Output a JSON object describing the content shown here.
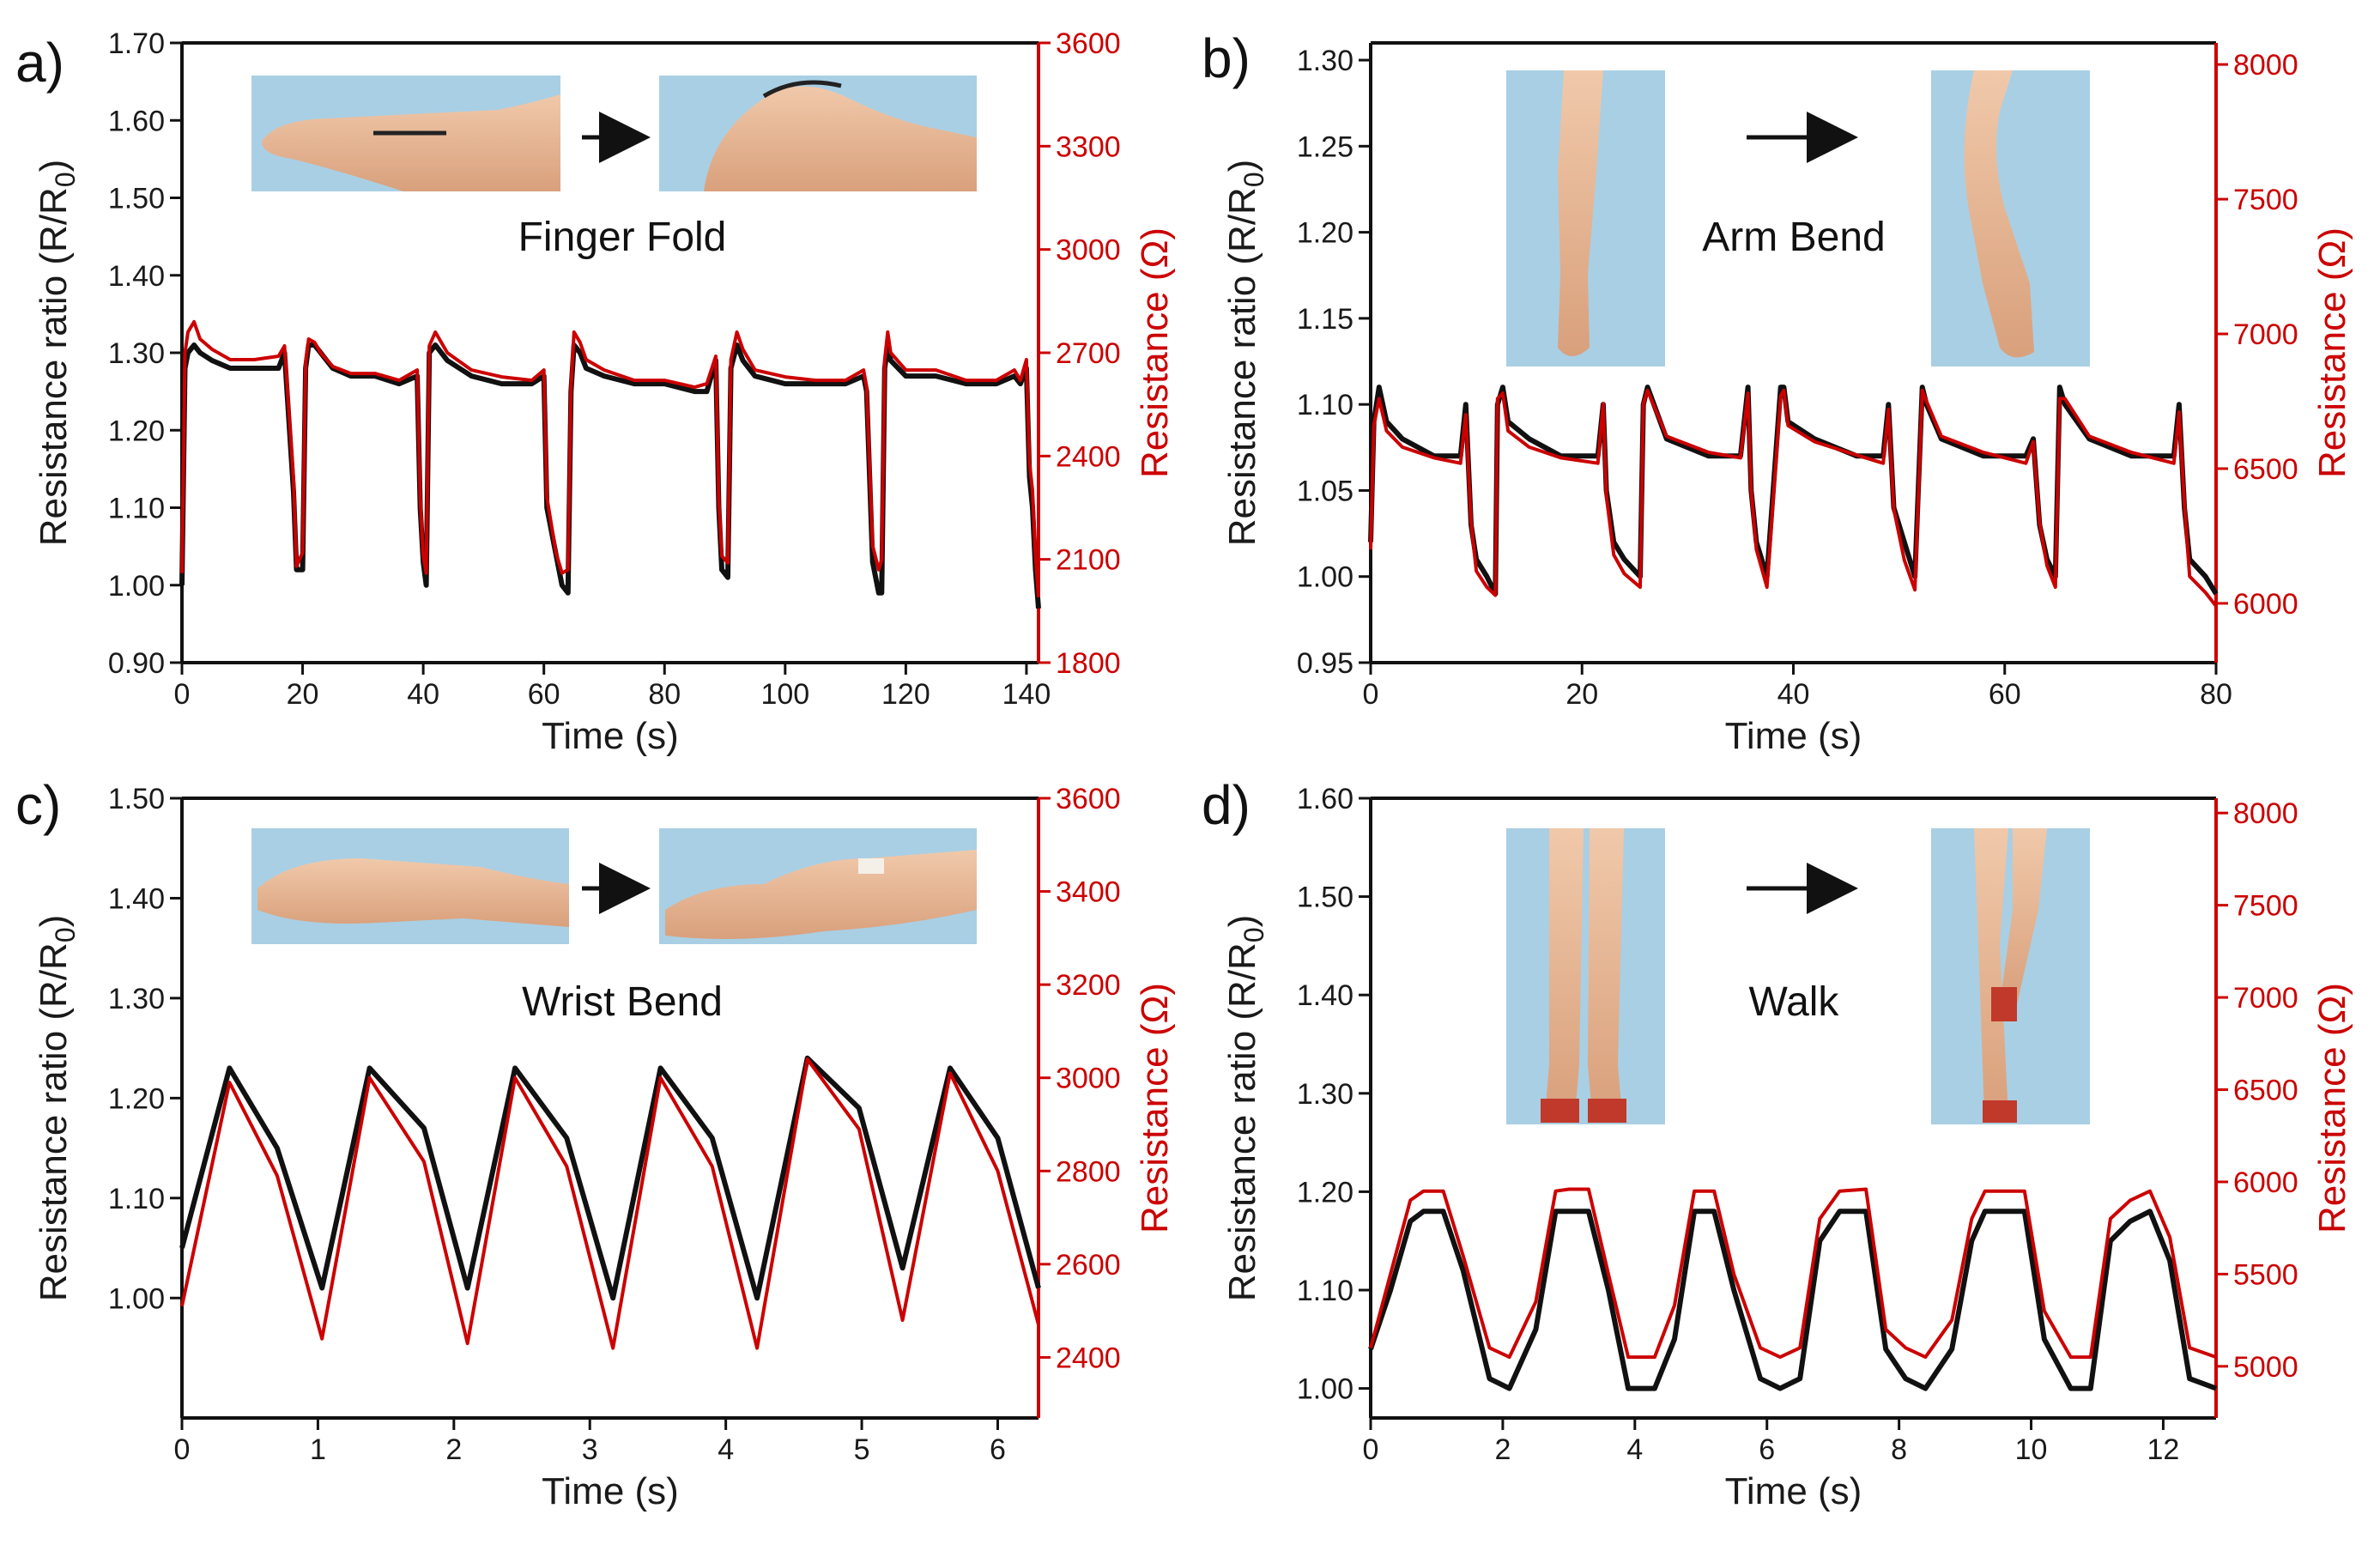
{
  "colors": {
    "ratio_series": "#111111",
    "resistance_series": "#cc0000",
    "photo_bg": "#a7cde3",
    "skin": "#e8b998"
  },
  "chart_data": [
    {
      "type": "line",
      "panel_label": "a)",
      "activity": "Finger Fold",
      "xlabel": "Time (s)",
      "ylabel_left": "Resistance ratio (R/R0)",
      "ylabel_right": "Resistance (Ω)",
      "xlim": [
        0,
        142
      ],
      "ylim_left": [
        0.9,
        1.7
      ],
      "ylim_right": [
        1800,
        3600
      ],
      "xticks": [
        "0",
        "20",
        "40",
        "60",
        "80",
        "100",
        "120",
        "140"
      ],
      "yticks_left": [
        "0.90",
        "1.00",
        "1.10",
        "1.20",
        "1.30",
        "1.40",
        "1.50",
        "1.60",
        "1.70"
      ],
      "yticks_right": [
        "1800",
        "2100",
        "2400",
        "2700",
        "3000",
        "3300",
        "3600"
      ],
      "series": [
        {
          "axis": "left",
          "x": [
            0,
            0.5,
            1,
            2,
            3,
            5,
            8,
            12,
            16,
            17,
            18.5,
            19,
            20,
            20.5,
            21,
            22,
            23,
            25,
            28,
            32,
            36,
            39,
            39.5,
            40,
            40.5,
            41,
            42,
            44,
            48,
            53,
            58,
            60,
            60.5,
            62,
            63,
            64,
            64.5,
            65,
            66,
            67,
            70,
            75,
            80,
            85,
            87,
            88.5,
            89,
            89.5,
            90.5,
            91,
            92,
            93,
            95,
            100,
            105,
            110,
            113,
            113.5,
            114.5,
            115.5,
            116,
            116.5,
            117,
            117.5,
            120,
            125,
            130,
            135,
            138,
            139,
            140,
            140.5,
            141,
            141.5,
            142
          ],
          "values": [
            1.0,
            1.28,
            1.3,
            1.31,
            1.3,
            1.29,
            1.28,
            1.28,
            1.28,
            1.3,
            1.12,
            1.02,
            1.02,
            1.28,
            1.31,
            1.31,
            1.3,
            1.28,
            1.27,
            1.27,
            1.26,
            1.27,
            1.1,
            1.03,
            1.0,
            1.3,
            1.31,
            1.29,
            1.27,
            1.26,
            1.26,
            1.27,
            1.1,
            1.04,
            1.0,
            0.99,
            1.25,
            1.31,
            1.3,
            1.28,
            1.27,
            1.26,
            1.26,
            1.25,
            1.25,
            1.29,
            1.1,
            1.02,
            1.01,
            1.28,
            1.31,
            1.29,
            1.27,
            1.26,
            1.26,
            1.26,
            1.27,
            1.25,
            1.03,
            0.99,
            0.99,
            1.28,
            1.31,
            1.29,
            1.27,
            1.27,
            1.26,
            1.26,
            1.27,
            1.26,
            1.28,
            1.14,
            1.1,
            1.02,
            0.97
          ]
        },
        {
          "axis": "right",
          "x": [
            0,
            0.5,
            1,
            2,
            3,
            5,
            8,
            12,
            16,
            17,
            18.5,
            19,
            20,
            20.5,
            21,
            22,
            23,
            25,
            28,
            32,
            36,
            39,
            39.5,
            40,
            40.5,
            41,
            42,
            44,
            48,
            53,
            58,
            60,
            60.5,
            62,
            63,
            64,
            64.5,
            65,
            66,
            67,
            70,
            75,
            80,
            85,
            87,
            88.5,
            89,
            89.5,
            90.5,
            91,
            92,
            93,
            95,
            100,
            105,
            110,
            113,
            113.5,
            114.5,
            115.5,
            116,
            116.5,
            117,
            117.5,
            120,
            125,
            130,
            135,
            138,
            139,
            140,
            140.5,
            141,
            141.5,
            142
          ],
          "values": [
            2060,
            2700,
            2760,
            2790,
            2740,
            2710,
            2680,
            2680,
            2690,
            2720,
            2330,
            2080,
            2120,
            2670,
            2740,
            2730,
            2700,
            2660,
            2640,
            2640,
            2620,
            2650,
            2280,
            2110,
            2060,
            2720,
            2760,
            2700,
            2650,
            2630,
            2620,
            2650,
            2280,
            2120,
            2060,
            2070,
            2600,
            2760,
            2730,
            2680,
            2650,
            2620,
            2620,
            2600,
            2610,
            2690,
            2270,
            2110,
            2090,
            2680,
            2760,
            2710,
            2650,
            2630,
            2620,
            2620,
            2650,
            2600,
            2140,
            2070,
            2100,
            2680,
            2760,
            2700,
            2650,
            2650,
            2620,
            2620,
            2650,
            2620,
            2680,
            2380,
            2300,
            2110,
            1990
          ]
        }
      ]
    },
    {
      "type": "line",
      "panel_label": "b)",
      "activity": "Arm Bend",
      "xlabel": "Time (s)",
      "ylabel_left": "Resistance ratio (R/R0)",
      "ylabel_right": "Resistance (Ω)",
      "xlim": [
        0,
        80
      ],
      "ylim_left": [
        0.95,
        1.31
      ],
      "ylim_right": [
        5780,
        8080
      ],
      "xticks": [
        "0",
        "20",
        "40",
        "60",
        "80"
      ],
      "yticks_left": [
        "0.95",
        "1.00",
        "1.05",
        "1.10",
        "1.15",
        "1.20",
        "1.25",
        "1.30"
      ],
      "yticks_right": [
        "6000",
        "6500",
        "7000",
        "7500",
        "8000"
      ],
      "series": [
        {
          "axis": "left",
          "x": [
            0,
            0.3,
            0.8,
            1.5,
            3,
            6,
            8.5,
            9,
            9.5,
            10,
            11,
            11.8,
            12,
            12.5,
            13,
            15,
            18,
            21.5,
            22,
            22.3,
            23,
            24,
            25.5,
            25.8,
            26.2,
            28,
            32,
            35,
            35.7,
            36,
            36.5,
            37.5,
            38.8,
            39.1,
            39.5,
            42,
            46,
            48.5,
            49,
            49.5,
            50.5,
            51.5,
            52.2,
            52.6,
            54,
            58,
            62,
            62.7,
            63.3,
            64,
            64.8,
            65.2,
            65.7,
            68,
            72,
            76,
            76.5,
            77,
            77.5,
            79,
            80
          ],
          "values": [
            1.02,
            1.09,
            1.11,
            1.09,
            1.08,
            1.07,
            1.07,
            1.1,
            1.03,
            1.01,
            1.0,
            0.99,
            1.1,
            1.11,
            1.09,
            1.08,
            1.07,
            1.07,
            1.1,
            1.05,
            1.02,
            1.01,
            1.0,
            1.1,
            1.11,
            1.08,
            1.07,
            1.07,
            1.11,
            1.05,
            1.02,
            1.0,
            1.11,
            1.11,
            1.09,
            1.08,
            1.07,
            1.07,
            1.1,
            1.04,
            1.02,
            1.0,
            1.11,
            1.1,
            1.08,
            1.07,
            1.07,
            1.08,
            1.03,
            1.01,
            1.0,
            1.11,
            1.1,
            1.08,
            1.07,
            1.07,
            1.1,
            1.04,
            1.01,
            1.0,
            0.99
          ]
        },
        {
          "axis": "right",
          "x": [
            0,
            0.3,
            0.8,
            1.5,
            3,
            6,
            8.5,
            9,
            9.5,
            10,
            11,
            11.8,
            12,
            12.5,
            13,
            15,
            18,
            21.5,
            22,
            22.3,
            23,
            24,
            25.5,
            25.8,
            26.2,
            28,
            32,
            35,
            35.7,
            36,
            36.5,
            37.5,
            38.8,
            39.1,
            39.5,
            42,
            46,
            48.5,
            49,
            49.5,
            50.5,
            51.5,
            52.2,
            52.6,
            54,
            58,
            62,
            62.7,
            63.3,
            64,
            64.8,
            65.2,
            65.7,
            68,
            72,
            76,
            76.5,
            77,
            77.5,
            79,
            80
          ],
          "values": [
            6200,
            6660,
            6760,
            6640,
            6580,
            6540,
            6520,
            6700,
            6300,
            6120,
            6060,
            6030,
            6760,
            6780,
            6640,
            6580,
            6540,
            6520,
            6740,
            6400,
            6180,
            6110,
            6060,
            6740,
            6790,
            6620,
            6560,
            6540,
            6780,
            6420,
            6200,
            6060,
            6770,
            6790,
            6660,
            6600,
            6550,
            6520,
            6720,
            6350,
            6160,
            6050,
            6790,
            6750,
            6620,
            6560,
            6520,
            6600,
            6300,
            6140,
            6060,
            6760,
            6760,
            6620,
            6560,
            6520,
            6710,
            6370,
            6100,
            6040,
            5990
          ]
        }
      ]
    },
    {
      "type": "line",
      "panel_label": "c)",
      "activity": "Wrist Bend",
      "xlabel": "Time (s)",
      "ylabel_left": "Resistance ratio (R/R0)",
      "ylabel_right": "Resistance (Ω)",
      "xlim": [
        0,
        6.3
      ],
      "ylim_left": [
        0.88,
        1.5
      ],
      "ylim_right": [
        2270,
        3600
      ],
      "xticks": [
        "0",
        "1",
        "2",
        "3",
        "4",
        "5",
        "6"
      ],
      "yticks_left": [
        "1.00",
        "1.10",
        "1.20",
        "1.30",
        "1.40",
        "1.50"
      ],
      "yticks_right": [
        "2400",
        "2600",
        "2800",
        "3000",
        "3200",
        "3400",
        "3600"
      ],
      "series": [
        {
          "axis": "left",
          "x": [
            0,
            0.35,
            0.7,
            1.03,
            1.38,
            1.78,
            2.1,
            2.45,
            2.83,
            3.17,
            3.52,
            3.9,
            4.23,
            4.6,
            4.98,
            5.3,
            5.65,
            6.0,
            6.3
          ],
          "values": [
            1.05,
            1.23,
            1.15,
            1.01,
            1.23,
            1.17,
            1.01,
            1.23,
            1.16,
            1.0,
            1.23,
            1.16,
            1.0,
            1.24,
            1.19,
            1.03,
            1.23,
            1.16,
            1.01
          ]
        },
        {
          "axis": "right",
          "x": [
            0,
            0.35,
            0.7,
            1.03,
            1.38,
            1.78,
            2.1,
            2.45,
            2.83,
            3.17,
            3.52,
            3.9,
            4.23,
            4.6,
            4.98,
            5.3,
            5.65,
            6.0,
            6.3
          ],
          "values": [
            2510,
            2990,
            2790,
            2440,
            3000,
            2820,
            2430,
            3000,
            2810,
            2420,
            3000,
            2810,
            2420,
            3040,
            2890,
            2480,
            3010,
            2800,
            2470
          ]
        }
      ]
    },
    {
      "type": "line",
      "panel_label": "d)",
      "activity": "Walk",
      "xlabel": "Time (s)",
      "ylabel_left": "Resistance ratio (R/R0)",
      "ylabel_right": "Resistance (Ω)",
      "xlim": [
        0,
        12.8
      ],
      "ylim_left": [
        0.97,
        1.6
      ],
      "ylim_right": [
        4720,
        8080
      ],
      "xticks": [
        "0",
        "2",
        "4",
        "6",
        "8",
        "10",
        "12"
      ],
      "yticks_left": [
        "1.00",
        "1.10",
        "1.20",
        "1.30",
        "1.40",
        "1.50",
        "1.60"
      ],
      "yticks_right": [
        "5000",
        "5500",
        "6000",
        "6500",
        "7000",
        "7500",
        "8000"
      ],
      "series": [
        {
          "axis": "left",
          "x": [
            0,
            0.3,
            0.6,
            0.8,
            1.1,
            1.4,
            1.8,
            2.1,
            2.5,
            2.8,
            3.0,
            3.3,
            3.6,
            3.9,
            4.3,
            4.6,
            4.9,
            5.2,
            5.5,
            5.9,
            6.2,
            6.5,
            6.8,
            7.1,
            7.5,
            7.8,
            8.1,
            8.4,
            8.8,
            9.1,
            9.3,
            9.6,
            9.9,
            10.2,
            10.6,
            10.9,
            11.2,
            11.5,
            11.8,
            12.1,
            12.4,
            12.8
          ],
          "values": [
            1.04,
            1.1,
            1.17,
            1.18,
            1.18,
            1.12,
            1.01,
            1.0,
            1.06,
            1.18,
            1.18,
            1.18,
            1.1,
            1.0,
            1.0,
            1.05,
            1.18,
            1.18,
            1.1,
            1.01,
            1.0,
            1.01,
            1.15,
            1.18,
            1.18,
            1.04,
            1.01,
            1.0,
            1.04,
            1.15,
            1.18,
            1.18,
            1.18,
            1.05,
            1.0,
            1.0,
            1.15,
            1.17,
            1.18,
            1.13,
            1.01,
            1.0
          ]
        },
        {
          "axis": "right",
          "x": [
            0,
            0.3,
            0.6,
            0.8,
            1.1,
            1.4,
            1.8,
            2.1,
            2.5,
            2.8,
            3.0,
            3.3,
            3.6,
            3.9,
            4.3,
            4.6,
            4.9,
            5.2,
            5.5,
            5.9,
            6.2,
            6.5,
            6.8,
            7.1,
            7.5,
            7.8,
            8.1,
            8.4,
            8.8,
            9.1,
            9.3,
            9.6,
            9.9,
            10.2,
            10.6,
            10.9,
            11.2,
            11.5,
            11.8,
            12.1,
            12.4,
            12.8
          ],
          "values": [
            5100,
            5500,
            5900,
            5950,
            5950,
            5600,
            5100,
            5050,
            5350,
            5950,
            5960,
            5960,
            5500,
            5050,
            5050,
            5330,
            5950,
            5950,
            5500,
            5100,
            5050,
            5100,
            5800,
            5950,
            5960,
            5200,
            5100,
            5050,
            5250,
            5800,
            5950,
            5950,
            5950,
            5300,
            5050,
            5050,
            5800,
            5900,
            5950,
            5700,
            5100,
            5050
          ]
        }
      ]
    }
  ]
}
